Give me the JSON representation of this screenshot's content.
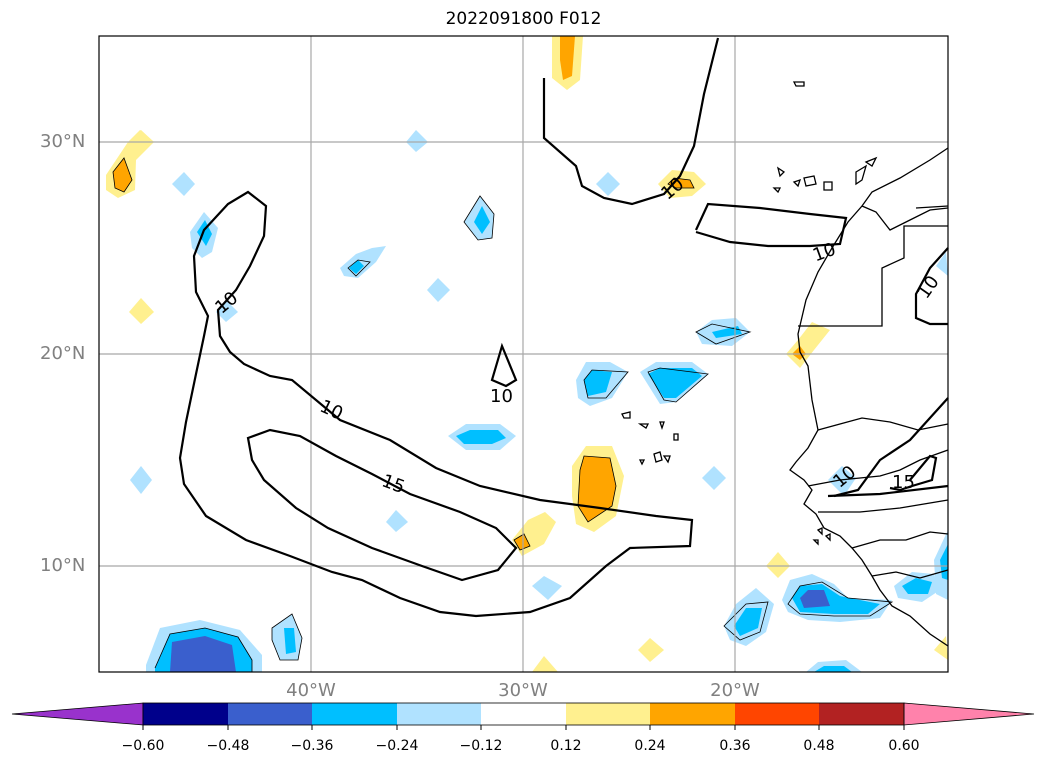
{
  "title": "2022091800 F012",
  "lat_labels": [
    "30°N",
    "20°N",
    "10°N"
  ],
  "lon_labels": [
    "40°W",
    "30°W",
    "20°W"
  ],
  "contour_labels": [
    "10",
    "10",
    "10",
    "10",
    "15",
    "10",
    "10",
    "10",
    "15"
  ],
  "colorbar": {
    "ticks": [
      "−0.60",
      "−0.48",
      "−0.36",
      "−0.24",
      "−0.12",
      "0.12",
      "0.24",
      "0.36",
      "0.48",
      "0.60"
    ],
    "colors": [
      "#9932cc",
      "#00008b",
      "#3a5fcd",
      "#00bfff",
      "#b0e2ff",
      "#ffffff",
      "#fff08f",
      "#ffa500",
      "#ff4500",
      "#b22222",
      "#ff82ab"
    ]
  },
  "shading_colors": {
    "neg_light": "#b0e2ff",
    "neg_mid": "#00bfff",
    "neg_dark": "#3a5fcd",
    "pos_light": "#fff08f",
    "pos_mid": "#ffa500",
    "pos_dark": "#ff4500"
  },
  "map_extent": {
    "lon_range": [
      "49°W",
      "9°W"
    ],
    "lat_range": [
      "5°N",
      "35°N"
    ],
    "grid_lons": [
      "40°W",
      "30°W",
      "20°W"
    ],
    "grid_lats": [
      "30°N",
      "20°N",
      "10°N"
    ]
  }
}
